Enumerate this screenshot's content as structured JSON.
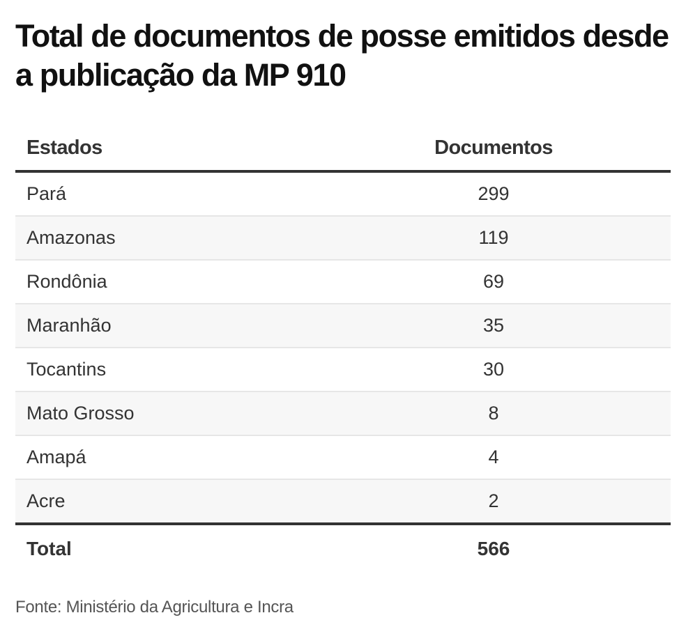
{
  "title": "Total de documentos de posse emitidos desde a publicação da MP 910",
  "table": {
    "headers": [
      "Estados",
      "Documentos"
    ],
    "rows": [
      {
        "state": "Pará",
        "docs": "299"
      },
      {
        "state": "Amazonas",
        "docs": "119"
      },
      {
        "state": "Rondônia",
        "docs": "69"
      },
      {
        "state": "Maranhão",
        "docs": "35"
      },
      {
        "state": "Tocantins",
        "docs": "30"
      },
      {
        "state": "Mato Grosso",
        "docs": "8"
      },
      {
        "state": "Amapá",
        "docs": "4"
      },
      {
        "state": "Acre",
        "docs": "2"
      }
    ],
    "total": {
      "label": "Total",
      "value": "566"
    }
  },
  "source": "Fonte: Ministério da Agricultura e Incra",
  "chart_data": {
    "type": "table",
    "title": "Total de documentos de posse emitidos desde a publicação da MP 910",
    "columns": [
      "Estados",
      "Documentos"
    ],
    "categories": [
      "Pará",
      "Amazonas",
      "Rondônia",
      "Maranhão",
      "Tocantins",
      "Mato Grosso",
      "Amapá",
      "Acre"
    ],
    "values": [
      299,
      119,
      69,
      35,
      30,
      8,
      4,
      2
    ],
    "total": 566,
    "source": "Fonte: Ministério da Agricultura e Incra"
  }
}
